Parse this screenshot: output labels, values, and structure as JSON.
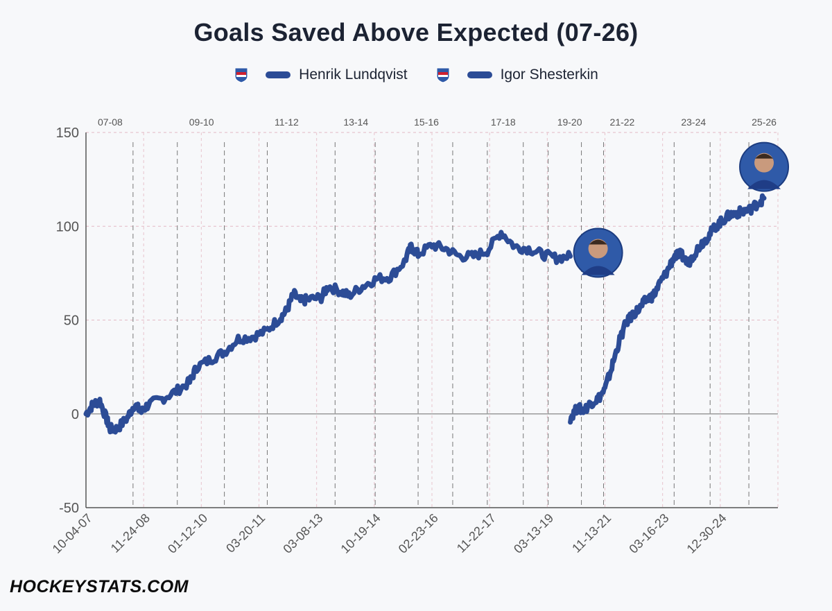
{
  "watermark": "HOCKEYSTATS.COM",
  "colors": {
    "series": "#2c4c96",
    "rangers_blue": "#2f5aa8",
    "rangers_red": "#cf2030"
  },
  "chart_data": {
    "type": "line",
    "title": "Goals Saved Above Expected (07-26)",
    "xlabel": "",
    "ylabel": "",
    "ylim": [
      -50,
      150
    ],
    "yticks": [
      150,
      100,
      50,
      0,
      -50
    ],
    "x_tick_labels": [
      "10-04-07",
      "11-24-08",
      "01-12-10",
      "03-20-11",
      "03-08-13",
      "10-19-14",
      "02-23-16",
      "11-22-17",
      "03-13-19",
      "11-13-21",
      "03-16-23",
      "12-30-24"
    ],
    "season_labels": [
      "07-08",
      "09-10",
      "11-12",
      "13-14",
      "15-16",
      "17-18",
      "19-20",
      "21-22",
      "23-24",
      "25-26"
    ],
    "legend": [
      {
        "name": "Henrik Lundqvist",
        "icon": "rangers-logo-icon"
      },
      {
        "name": "Igor Shesterkin",
        "icon": "rangers-logo-icon"
      }
    ],
    "series": [
      {
        "name": "Henrik Lundqvist",
        "x_start": 0,
        "x_end": 0.7,
        "points": [
          [
            0,
            0
          ],
          [
            0.01,
            5
          ],
          [
            0.02,
            7
          ],
          [
            0.03,
            -3
          ],
          [
            0.035,
            -8
          ],
          [
            0.045,
            -8
          ],
          [
            0.06,
            -2
          ],
          [
            0.07,
            5
          ],
          [
            0.08,
            1
          ],
          [
            0.09,
            5
          ],
          [
            0.11,
            8
          ],
          [
            0.13,
            12
          ],
          [
            0.15,
            17
          ],
          [
            0.16,
            25
          ],
          [
            0.18,
            29
          ],
          [
            0.2,
            33
          ],
          [
            0.22,
            40
          ],
          [
            0.24,
            41
          ],
          [
            0.26,
            44
          ],
          [
            0.28,
            51
          ],
          [
            0.29,
            55
          ],
          [
            0.3,
            64
          ],
          [
            0.31,
            60
          ],
          [
            0.32,
            61
          ],
          [
            0.34,
            62
          ],
          [
            0.35,
            68
          ],
          [
            0.37,
            65
          ],
          [
            0.38,
            63
          ],
          [
            0.4,
            68
          ],
          [
            0.42,
            72
          ],
          [
            0.44,
            73
          ],
          [
            0.46,
            81
          ],
          [
            0.47,
            89
          ],
          [
            0.48,
            85
          ],
          [
            0.5,
            90
          ],
          [
            0.52,
            88
          ],
          [
            0.54,
            84
          ],
          [
            0.56,
            84
          ],
          [
            0.58,
            87
          ],
          [
            0.6,
            97
          ],
          [
            0.62,
            89
          ],
          [
            0.64,
            88
          ],
          [
            0.66,
            85
          ],
          [
            0.68,
            83
          ],
          [
            0.7,
            84
          ]
        ]
      },
      {
        "name": "Igor Shesterkin",
        "x_start": 0.7,
        "x_end": 1.0,
        "points": [
          [
            0.7,
            -2
          ],
          [
            0.71,
            3
          ],
          [
            0.72,
            2
          ],
          [
            0.73,
            6
          ],
          [
            0.74,
            8
          ],
          [
            0.75,
            13
          ],
          [
            0.76,
            25
          ],
          [
            0.77,
            38
          ],
          [
            0.78,
            48
          ],
          [
            0.79,
            53
          ],
          [
            0.8,
            56
          ],
          [
            0.81,
            61
          ],
          [
            0.82,
            63
          ],
          [
            0.83,
            70
          ],
          [
            0.84,
            76
          ],
          [
            0.85,
            84
          ],
          [
            0.86,
            85
          ],
          [
            0.87,
            80
          ],
          [
            0.88,
            86
          ],
          [
            0.89,
            91
          ],
          [
            0.9,
            95
          ],
          [
            0.91,
            100
          ],
          [
            0.92,
            103
          ],
          [
            0.93,
            106
          ],
          [
            0.94,
            107
          ],
          [
            0.95,
            108
          ],
          [
            0.96,
            109
          ],
          [
            0.97,
            112
          ],
          [
            0.98,
            115
          ]
        ]
      }
    ]
  }
}
